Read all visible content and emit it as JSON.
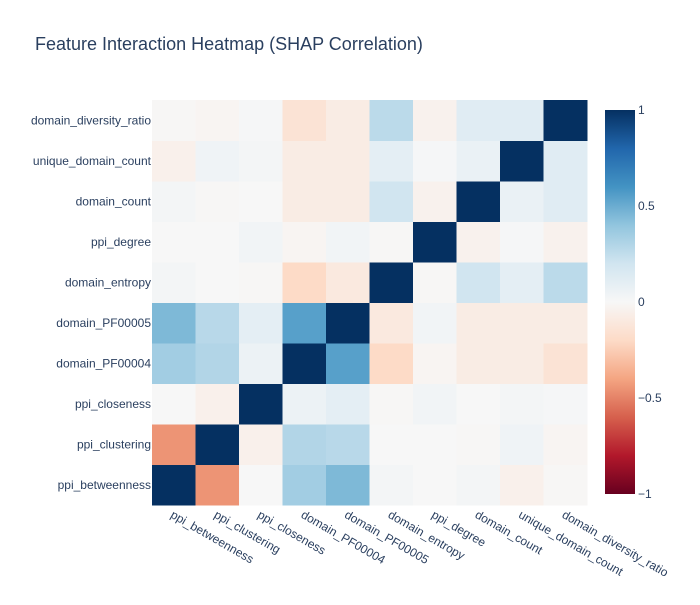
{
  "chart_data": {
    "type": "heatmap",
    "title": "Feature Interaction Heatmap (SHAP Correlation)",
    "x_labels": [
      "ppi_betweenness",
      "ppi_clustering",
      "ppi_closeness",
      "domain_PF00004",
      "domain_PF00005",
      "domain_entropy",
      "ppi_degree",
      "domain_count",
      "unique_domain_count",
      "domain_diversity_ratio"
    ],
    "y_labels": [
      "ppi_betweenness",
      "ppi_clustering",
      "ppi_closeness",
      "domain_PF00004",
      "domain_PF00005",
      "domain_entropy",
      "ppi_degree",
      "domain_count",
      "unique_domain_count",
      "domain_diversity_ratio"
    ],
    "z": [
      [
        1.0,
        -0.45,
        0.0,
        0.35,
        0.45,
        0.02,
        0.0,
        0.02,
        -0.05,
        -0.01
      ],
      [
        -0.45,
        1.0,
        -0.05,
        0.3,
        0.28,
        0.0,
        0.0,
        -0.01,
        0.04,
        -0.02
      ],
      [
        0.0,
        -0.05,
        1.0,
        0.06,
        0.1,
        -0.01,
        0.03,
        0.0,
        0.02,
        0.01
      ],
      [
        0.35,
        0.3,
        0.06,
        1.0,
        0.55,
        -0.2,
        -0.02,
        -0.08,
        -0.08,
        -0.14
      ],
      [
        0.45,
        0.28,
        0.1,
        0.55,
        1.0,
        -0.1,
        0.03,
        -0.08,
        -0.08,
        -0.08
      ],
      [
        0.02,
        0.0,
        -0.01,
        -0.2,
        -0.1,
        1.0,
        -0.01,
        0.2,
        0.1,
        0.27
      ],
      [
        0.0,
        0.0,
        0.03,
        -0.02,
        0.03,
        -0.01,
        1.0,
        -0.04,
        0.01,
        -0.04
      ],
      [
        0.02,
        -0.01,
        0.0,
        -0.08,
        -0.08,
        0.2,
        -0.04,
        1.0,
        0.07,
        0.12
      ],
      [
        -0.05,
        0.04,
        0.02,
        -0.08,
        -0.08,
        0.1,
        0.01,
        0.07,
        1.0,
        0.12
      ],
      [
        -0.01,
        -0.02,
        0.01,
        -0.14,
        -0.08,
        0.27,
        -0.04,
        0.12,
        0.12,
        1.0
      ]
    ],
    "zmin": -1,
    "zmax": 1,
    "colorscale": "RdBu",
    "colorbar_ticks": [
      1,
      0.5,
      0,
      -0.5,
      -1
    ],
    "colorbar_tick_labels": [
      "1",
      "0.5",
      "0",
      "−0.5",
      "−1"
    ],
    "colors": {
      "scale": [
        "#67001f",
        "#b2182b",
        "#d6604d",
        "#f4a582",
        "#fddbc7",
        "#f7f7f7",
        "#d1e5f0",
        "#92c5de",
        "#4393c3",
        "#2166ac",
        "#053061"
      ],
      "text": "#2a3f5f"
    }
  }
}
